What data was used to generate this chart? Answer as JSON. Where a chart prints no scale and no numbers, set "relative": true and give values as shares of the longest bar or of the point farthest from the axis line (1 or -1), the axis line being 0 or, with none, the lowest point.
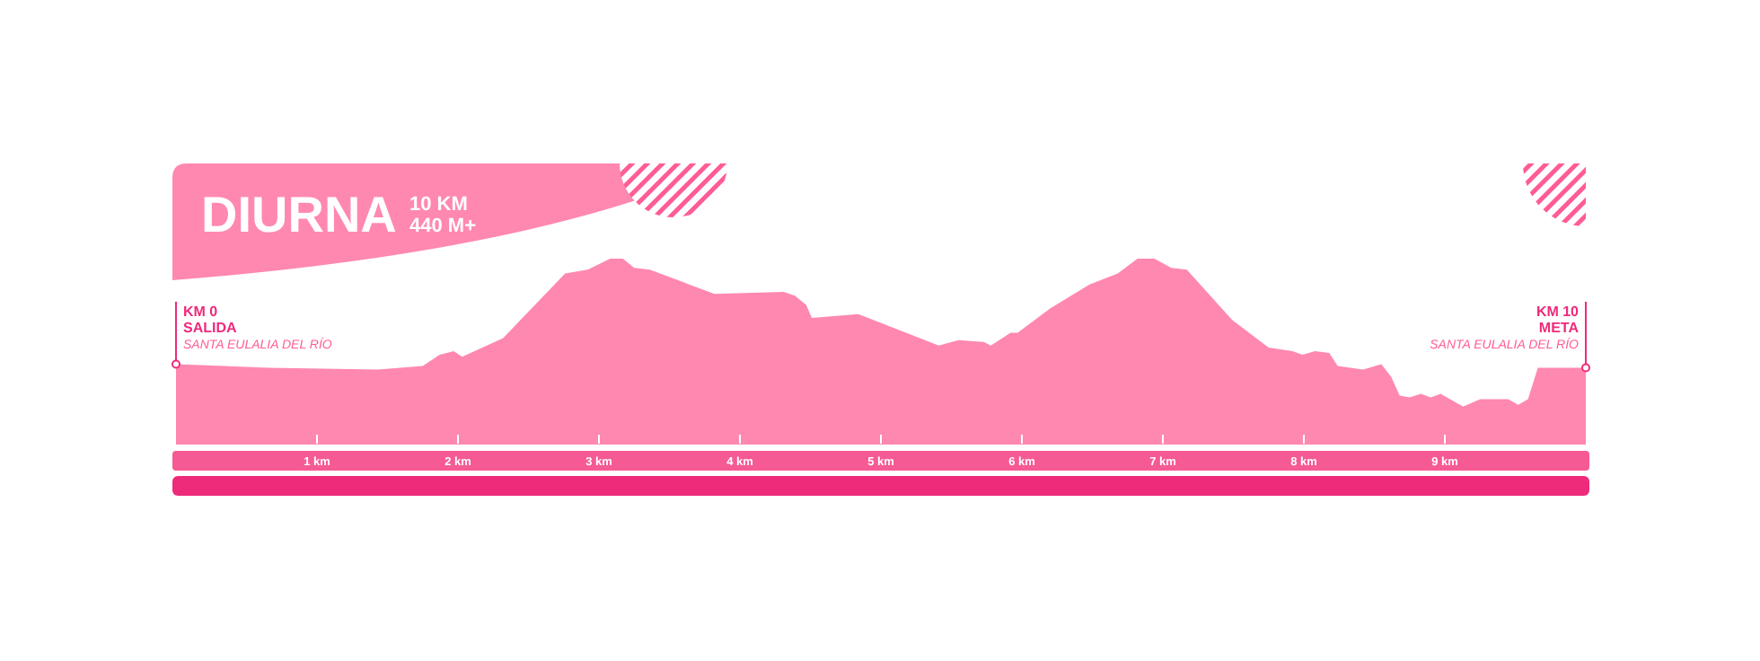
{
  "chart_data": {
    "type": "area",
    "title": "DIURNA",
    "relative": true,
    "color": "#ff88b0",
    "x": [
      0,
      0.66,
      1.43,
      1.75,
      1.87,
      1.97,
      2.03,
      2.32,
      2.76,
      2.92,
      3.08,
      3.17,
      3.25,
      3.36,
      3.82,
      4.31,
      4.39,
      4.47,
      4.51,
      4.84,
      5.41,
      5.55,
      5.73,
      5.78,
      5.92,
      5.97,
      6.2,
      6.48,
      6.68,
      6.82,
      6.94,
      7.06,
      7.17,
      7.49,
      7.75,
      7.92,
      7.99,
      8.08,
      8.18,
      8.24,
      8.42,
      8.55,
      8.62,
      8.68,
      8.75,
      8.83,
      8.9,
      8.97,
      9.13,
      9.25,
      9.45,
      9.52,
      9.59,
      9.66,
      10
    ],
    "values": [
      0.43,
      0.41,
      0.4,
      0.42,
      0.48,
      0.5,
      0.47,
      0.57,
      0.92,
      0.94,
      1,
      1,
      0.95,
      0.94,
      0.81,
      0.82,
      0.8,
      0.75,
      0.68,
      0.7,
      0.53,
      0.56,
      0.55,
      0.53,
      0.6,
      0.6,
      0.73,
      0.86,
      0.92,
      1,
      1,
      0.95,
      0.94,
      0.67,
      0.52,
      0.5,
      0.48,
      0.5,
      0.49,
      0.42,
      0.4,
      0.43,
      0.36,
      0.26,
      0.25,
      0.27,
      0.25,
      0.27,
      0.2,
      0.24,
      0.24,
      0.21,
      0.24,
      0.41,
      0.41
    ],
    "xlim": [
      0,
      10
    ],
    "xticks": [
      {
        "value": 1,
        "label": "1 km"
      },
      {
        "value": 2,
        "label": "2 km"
      },
      {
        "value": 3,
        "label": "3 km"
      },
      {
        "value": 4,
        "label": "4 km"
      },
      {
        "value": 5,
        "label": "5 km"
      },
      {
        "value": 6,
        "label": "6 km"
      },
      {
        "value": 7,
        "label": "7 km"
      },
      {
        "value": 8,
        "label": "8 km"
      },
      {
        "value": 9,
        "label": "9 km"
      }
    ],
    "annotations": [
      "10 KM",
      "440 M+",
      "KM 0",
      "SALIDA",
      "SANTA EULALIA DEL RÍO",
      "KM 10",
      "META",
      "SANTA EULALIA DEL RÍO"
    ]
  }
}
